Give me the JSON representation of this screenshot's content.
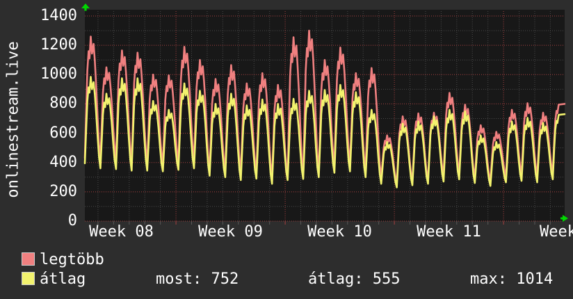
{
  "host_label": "onlinestream.live",
  "colors": {
    "background": "#2d2d2d",
    "plot_background": "#181818",
    "grid_major_red": "#a84040",
    "grid_minor_gray": "#4a4a4a",
    "tick_minor": "#5a5a5a",
    "text": "#ffffff",
    "arrow_green": "#00d800",
    "series_max": "#f08080",
    "series_avg": "#f3f36e",
    "swatch_border": "#cfcfcf"
  },
  "chart_data": {
    "type": "line",
    "title": "",
    "xlabel": "",
    "ylabel": "",
    "ylim": [
      0,
      1400
    ],
    "y_ticks": [
      0,
      200,
      400,
      600,
      800,
      1000,
      1200,
      1400
    ],
    "x_tick_labels": [
      "Week 08",
      "Week 09",
      "Week 10",
      "Week 11",
      "Week"
    ],
    "grid": "on",
    "legend_position": "bottom-left",
    "x_unit": "days",
    "days_shown": 31,
    "series": [
      {
        "name": "legtöbb",
        "color": "#f08080",
        "day_peaks": [
          1260,
          1050,
          1165,
          1150,
          1000,
          995,
          1190,
          1100,
          970,
          1065,
          940,
          1010,
          930,
          1255,
          1300,
          1100,
          1185,
          1010,
          1045,
          585,
          715,
          735,
          740,
          875,
          795,
          655,
          610,
          760,
          805,
          740,
          795
        ],
        "day_troughs": [
          430,
          420,
          430,
          400,
          400,
          390,
          400,
          420,
          350,
          345,
          330,
          335,
          300,
          310,
          310,
          335,
          385,
          390,
          350,
          290,
          260,
          275,
          285,
          320,
          330,
          300,
          270,
          310,
          320,
          310,
          330
        ],
        "end_value": 800
      },
      {
        "name": "átlag",
        "color": "#f3f36e",
        "day_peaks": [
          985,
          870,
          975,
          975,
          820,
          760,
          940,
          890,
          800,
          870,
          790,
          830,
          800,
          835,
          890,
          895,
          930,
          880,
          760,
          540,
          665,
          680,
          715,
          760,
          750,
          585,
          540,
          680,
          705,
          670,
          725
        ],
        "day_troughs": [
          395,
          360,
          355,
          345,
          345,
          340,
          350,
          360,
          310,
          300,
          280,
          290,
          255,
          280,
          288,
          300,
          330,
          340,
          300,
          255,
          230,
          245,
          255,
          270,
          285,
          260,
          240,
          265,
          275,
          265,
          285
        ],
        "end_value": 730
      }
    ]
  },
  "legend": {
    "items": [
      {
        "label": "legtöbb",
        "color": "#f08080"
      },
      {
        "label": "átlag",
        "color": "#f3f36e"
      }
    ]
  },
  "stats": [
    {
      "label": "most",
      "value": "752",
      "text": "most: 752"
    },
    {
      "label": "átlag",
      "value": "555",
      "text": "átlag: 555"
    },
    {
      "label": "max",
      "value": "1014",
      "text": "max: 1014"
    }
  ]
}
